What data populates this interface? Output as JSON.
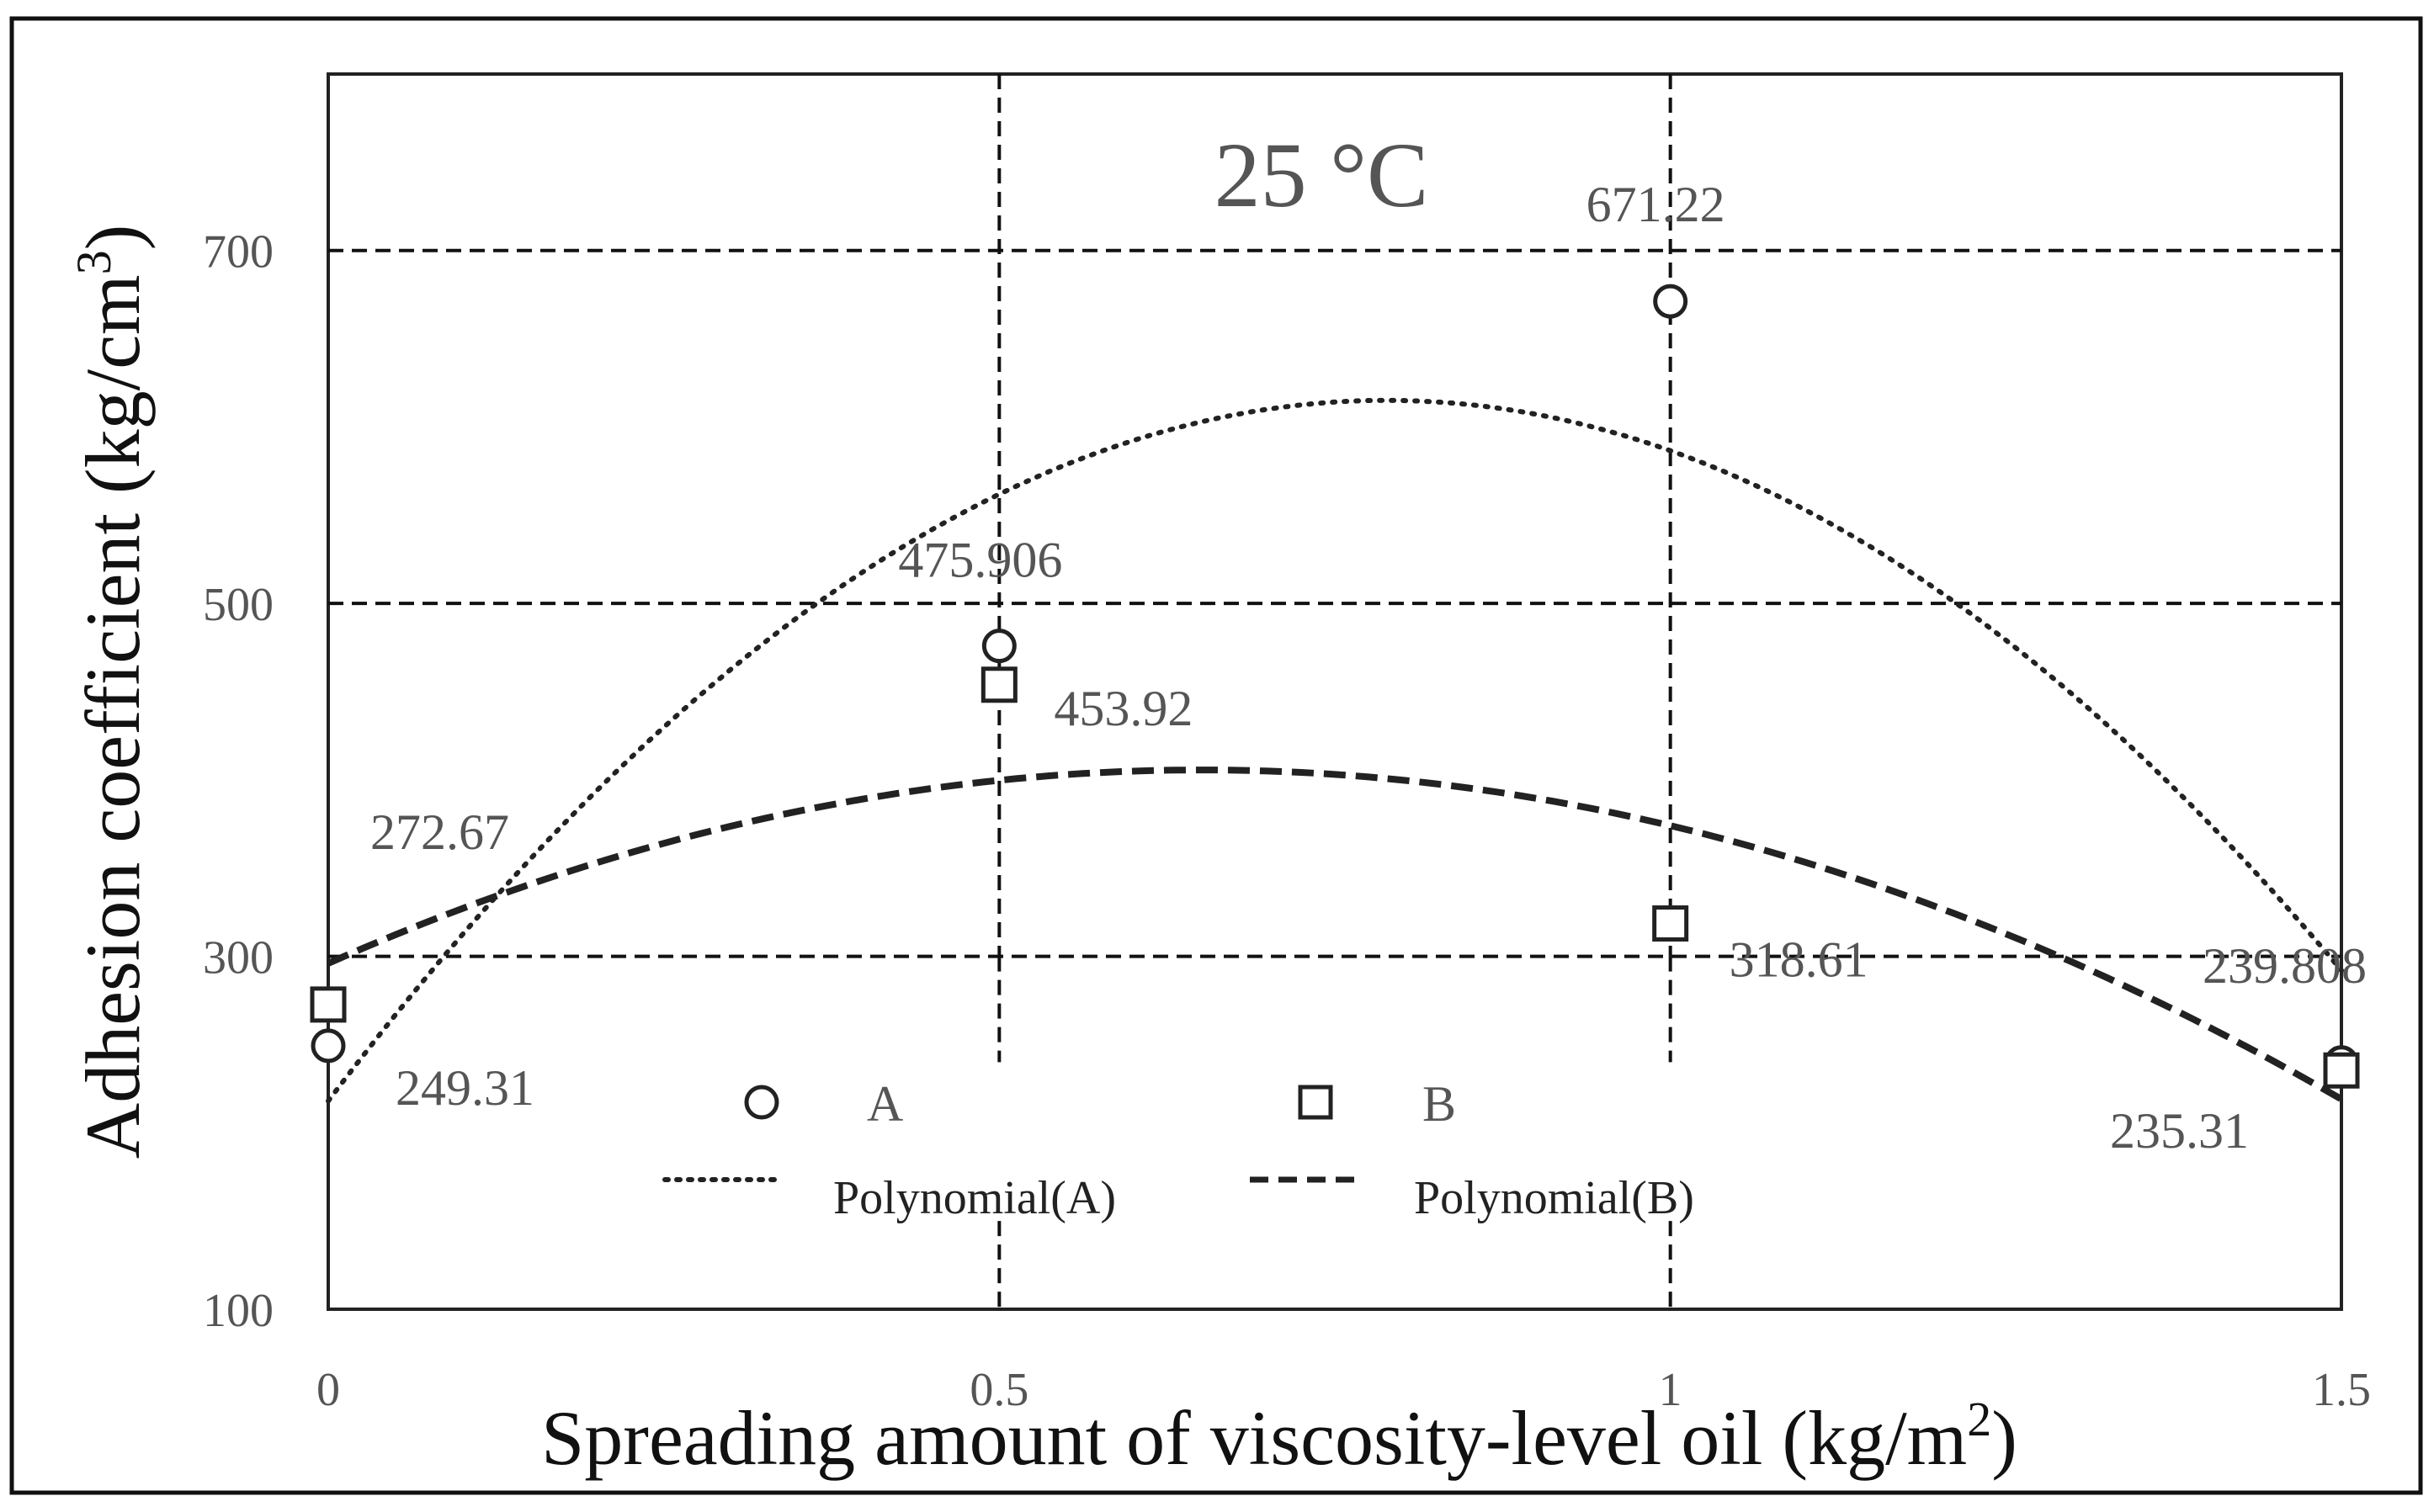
{
  "chart_data": {
    "type": "scatter",
    "title": "25 °C",
    "xlabel": "Spreading amount of viscosity-level   oil (kg/m",
    "xlabel_sup": "2",
    "xlabel_end": ")",
    "ylabel": "Adhesion coefficient  (kg/cm",
    "ylabel_sup": "3",
    "ylabel_end": ")",
    "xlim": [
      0,
      1.5
    ],
    "ylim": [
      100,
      800
    ],
    "x_ticks": [
      {
        "value": 0,
        "label": "0"
      },
      {
        "value": 0.5,
        "label": "0.5"
      },
      {
        "value": 1,
        "label": "1"
      },
      {
        "value": 1.5,
        "label": "1.5"
      }
    ],
    "y_ticks": [
      {
        "value": 100,
        "label": "100"
      },
      {
        "value": 300,
        "label": "300"
      },
      {
        "value": 500,
        "label": "500"
      },
      {
        "value": 700,
        "label": "700"
      }
    ],
    "grid": "dashed, y at 300/500/700, x at 0.5 and 1",
    "series": [
      {
        "name": "A",
        "marker": "circle",
        "x": [
          0,
          0.5,
          1,
          1.5
        ],
        "values": [
          249.31,
          475.906,
          671.22,
          239.808
        ],
        "labels": [
          "249.31",
          "475.906",
          "671.22",
          "239.808"
        ],
        "trendline": {
          "name": "Polynomial(A)",
          "style": "dotted",
          "degree": 2,
          "y_at_0": 218,
          "y_at_1_5": 292,
          "peak_x": 0.8,
          "peak_y": 615
        }
      },
      {
        "name": "B",
        "marker": "square",
        "x": [
          0,
          0.5,
          1,
          1.5
        ],
        "values": [
          272.67,
          453.92,
          318.61,
          235.31
        ],
        "labels": [
          "272.67",
          "453.92",
          "318.61",
          "235.31"
        ],
        "trendline": {
          "name": "Polynomial(B)",
          "style": "dashed",
          "degree": 2,
          "y_at_0": 296,
          "y_at_1_5": 219,
          "peak_x": 0.7,
          "peak_y": 405
        }
      }
    ],
    "legend": {
      "placement": "inside-bottom-center",
      "entries": [
        {
          "label": "A",
          "symbol": "circle"
        },
        {
          "label": "B",
          "symbol": "square"
        },
        {
          "label": "Polynomial(A)",
          "symbol": "dotted-line"
        },
        {
          "label": "Polynomial(B)",
          "symbol": "dashed-line"
        }
      ]
    },
    "colors": {
      "marker": "#222222",
      "grid": "#111111",
      "text_gray": "#555555"
    }
  }
}
